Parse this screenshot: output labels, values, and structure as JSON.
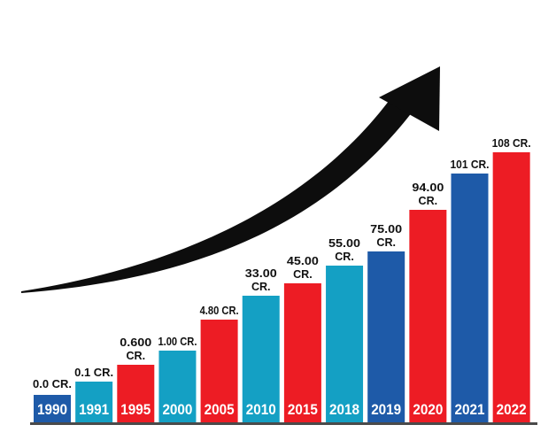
{
  "chart_data": {
    "type": "bar",
    "title": "",
    "xlabel": "",
    "ylabel": "",
    "ylim": [
      0,
      140
    ],
    "grid": false,
    "legend": "none",
    "categories": [
      "1990",
      "1991",
      "1995",
      "2000",
      "2005",
      "2010",
      "2015",
      "2018",
      "2019",
      "2020",
      "2021",
      "2022"
    ],
    "values": [
      0.0,
      0.1,
      0.6,
      1.0,
      4.8,
      33.0,
      45.0,
      55.0,
      75.0,
      94.0,
      101.0,
      108.0
    ],
    "value_labels": [
      [
        "0.0 CR."
      ],
      [
        "0.1 CR."
      ],
      [
        "0.600",
        "CR."
      ],
      [
        "1.00 CR."
      ],
      [
        "4.80 CR."
      ],
      [
        "33.00",
        "CR."
      ],
      [
        "45.00",
        "CR."
      ],
      [
        "55.00",
        "CR."
      ],
      [
        "75.00",
        "CR."
      ],
      [
        "94.00",
        "CR."
      ],
      [
        "101 CR."
      ],
      [
        "108 CR."
      ]
    ],
    "bar_colors": [
      "#1e5aa8",
      "#14a0c4",
      "#ed1c24",
      "#14a0c4",
      "#ed1c24",
      "#14a0c4",
      "#ed1c24",
      "#14a0c4",
      "#1e5aa8",
      "#ed1c24",
      "#1e5aa8",
      "#ed1c24"
    ],
    "annotations": [
      "trend-arrow"
    ]
  }
}
